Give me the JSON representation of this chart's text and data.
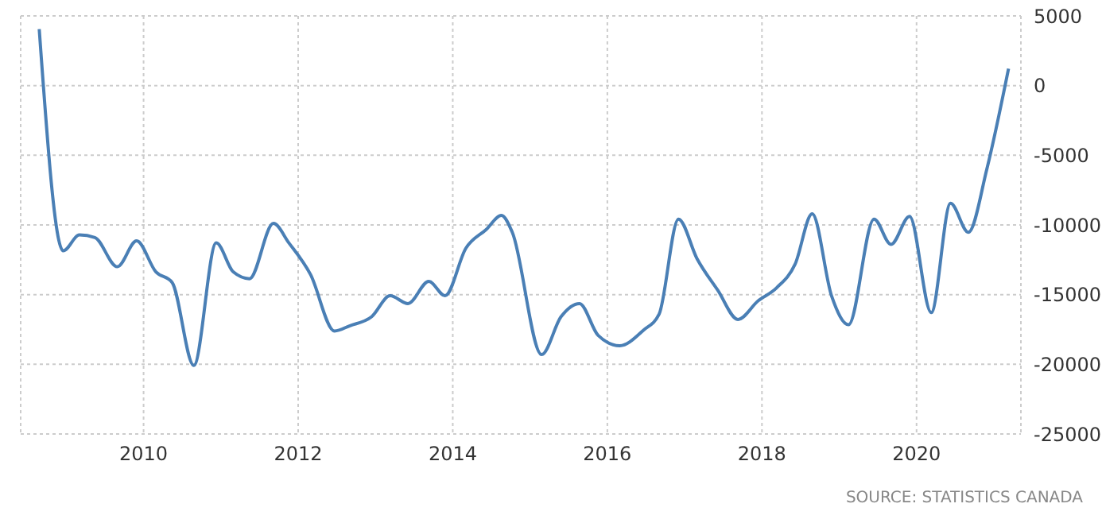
{
  "chart_data": {
    "type": "line",
    "x": [
      2008.65,
      2008.96,
      2009.17,
      2009.37,
      2009.66,
      2009.91,
      2010.16,
      2010.37,
      2010.65,
      2010.94,
      2011.16,
      2011.37,
      2011.68,
      2011.88,
      2012.16,
      2012.47,
      2012.67,
      2012.95,
      2013.19,
      2013.42,
      2013.69,
      2013.9,
      2014.17,
      2014.43,
      2014.63,
      2014.77,
      2015.15,
      2015.4,
      2015.64,
      2015.88,
      2016.16,
      2016.47,
      2016.67,
      2016.92,
      2017.16,
      2017.43,
      2017.69,
      2017.95,
      2018.19,
      2018.43,
      2018.65,
      2018.9,
      2019.12,
      2019.45,
      2019.67,
      2019.91,
      2020.19,
      2020.44,
      2020.67,
      2020.91,
      2021.19
    ],
    "series": [
      {
        "color": "#4a7fb5",
        "values": [
          4050,
          -11860,
          -10720,
          -10900,
          -13000,
          -11140,
          -13370,
          -14130,
          -20080,
          -11290,
          -13370,
          -13860,
          -9890,
          -11290,
          -13560,
          -17610,
          -17230,
          -16590,
          -15080,
          -15640,
          -14050,
          -15080,
          -11670,
          -10340,
          -9320,
          -10530,
          -19300,
          -16590,
          -15640,
          -17920,
          -18670,
          -17540,
          -16400,
          -9580,
          -12420,
          -14700,
          -16780,
          -15450,
          -14510,
          -12800,
          -9200,
          -15080,
          -17160,
          -9580,
          -11400,
          -9390,
          -16290,
          -8450,
          -10530,
          -5980,
          1210
        ]
      }
    ],
    "xlim": [
      2008.41,
      2021.35
    ],
    "xticks": [
      2010,
      2012,
      2014,
      2016,
      2018,
      2020
    ],
    "ylim": [
      -25000,
      5000
    ],
    "yticks": [
      -25000,
      -20000,
      -15000,
      -10000,
      -5000,
      0,
      5000
    ],
    "grid": true,
    "marker": "none",
    "line_style": "solid",
    "annotations": [
      "SOURCE: STATISTICS CANADA"
    ]
  }
}
